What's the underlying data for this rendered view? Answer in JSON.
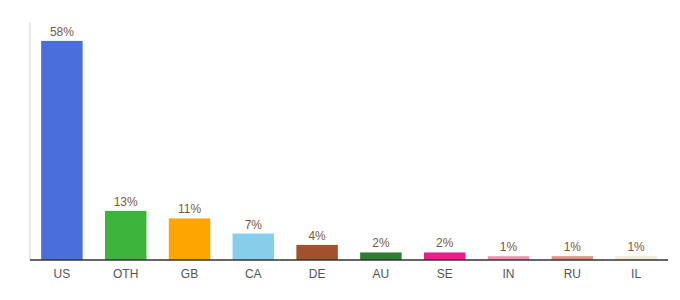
{
  "chart_data": {
    "type": "bar",
    "categories": [
      "US",
      "OTH",
      "GB",
      "CA",
      "DE",
      "AU",
      "SE",
      "IN",
      "RU",
      "IL"
    ],
    "values": [
      58,
      13,
      11,
      7,
      4,
      2,
      2,
      1,
      1,
      1
    ],
    "value_labels": [
      "58%",
      "13%",
      "11%",
      "7%",
      "4%",
      "2%",
      "2%",
      "1%",
      "1%",
      "1%"
    ],
    "colors": [
      "#4a6fdc",
      "#3db53d",
      "#ffa500",
      "#87ceeb",
      "#a0522d",
      "#2e7d32",
      "#e91e8c",
      "#f48fb1",
      "#e09080",
      "#f0ecd8"
    ],
    "ylim": [
      0,
      63
    ],
    "data_labels": true,
    "tick_labels": "x"
  }
}
